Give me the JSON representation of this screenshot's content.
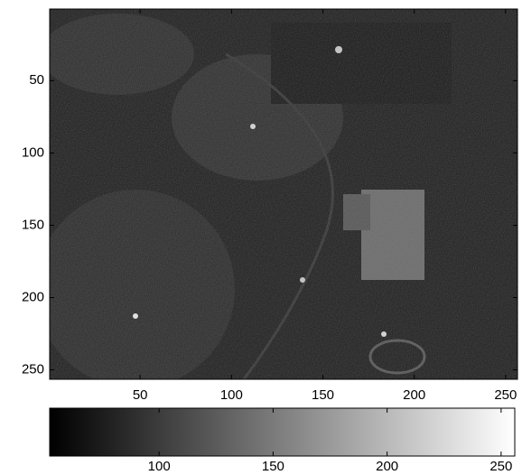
{
  "chart_data": {
    "type": "image",
    "colormap": "gray",
    "y_reversed": true,
    "xlim": [
      0.5,
      256.5
    ],
    "ylim": [
      0.5,
      256.5
    ],
    "xticks": [
      50,
      100,
      150,
      200,
      250
    ],
    "yticks": [
      50,
      100,
      150,
      200,
      250
    ],
    "colorbar": {
      "location": "south",
      "clim": [
        52,
        256
      ],
      "ticks": [
        100,
        150,
        200,
        250
      ]
    }
  }
}
